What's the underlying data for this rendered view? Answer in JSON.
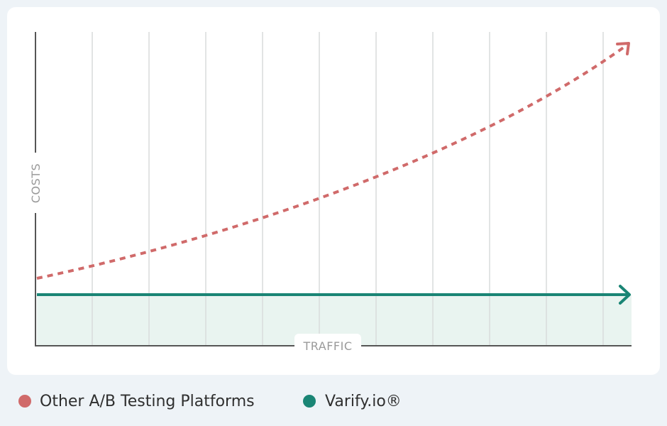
{
  "y_axis_label": "COSTS",
  "x_axis_label": "TRAFFIC",
  "legend": [
    {
      "label": "Other A/B Testing Platforms"
    },
    {
      "label": "Varify.io®"
    }
  ]
}
